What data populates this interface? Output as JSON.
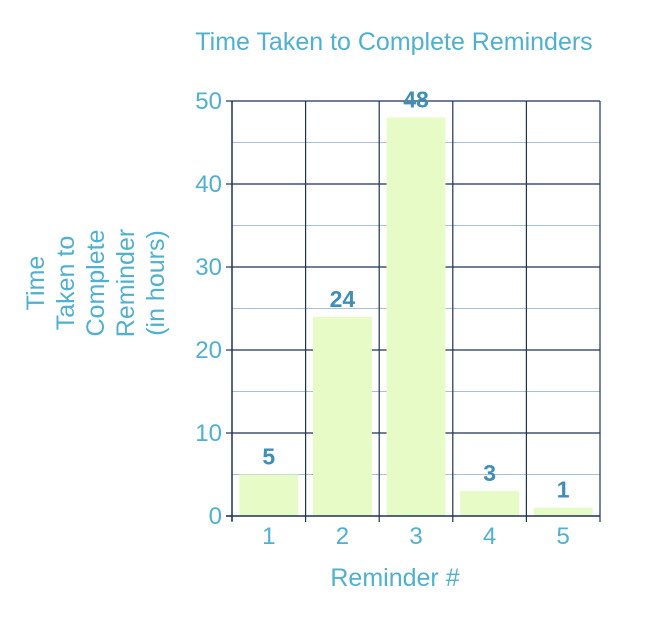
{
  "chart_data": {
    "type": "bar",
    "title": "Time Taken to Complete Reminders",
    "xlabel": "Reminder #",
    "ylabel_lines": [
      "Time",
      "Taken to",
      "Complete",
      "Reminder",
      "(in hours)"
    ],
    "categories": [
      "1",
      "2",
      "3",
      "4",
      "5"
    ],
    "values": [
      5,
      24,
      48,
      3,
      1
    ],
    "data_labels": [
      "5",
      "24",
      "48",
      "3",
      "1"
    ],
    "ylim": [
      0,
      50
    ],
    "yticks": [
      "0",
      "10",
      "20",
      "30",
      "40",
      "50"
    ],
    "grid": true,
    "colors": {
      "bar": "#e6fbc6",
      "text": "#4fb0cf",
      "data_label": "#3d8fb5",
      "grid_major": "#1d3257",
      "grid_minor": "#a9bfd6"
    }
  }
}
